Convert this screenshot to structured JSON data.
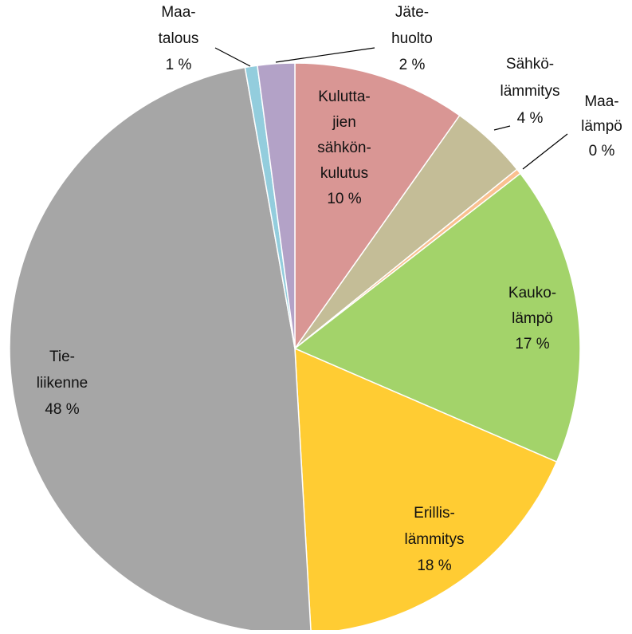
{
  "chart_data": {
    "type": "pie",
    "categories": [
      "Kulutta-\njien\nsähkön-\nkulutus",
      "Sähkö-\nlämmitys",
      "Maa-\nlämpö",
      "Kauko-\nlämpö",
      "Erillis-\nlämmitys",
      "Tie-\nliikenne",
      "Maa-\ntalous",
      "Jäte-\nhuolto"
    ],
    "values": [
      9.8,
      4.4,
      0.3,
      17.0,
      17.6,
      48.1,
      0.7,
      2.1
    ],
    "value_labels": [
      "10 %",
      "4 %",
      "0 %",
      "17 %",
      "18 %",
      "48 %",
      "1 %",
      "2 %"
    ],
    "colors": [
      "#d99694",
      "#c4bd97",
      "#fac090",
      "#a3d36a",
      "#ffcc33",
      "#a6a6a6",
      "#93cddd",
      "#b3a2c7"
    ]
  }
}
